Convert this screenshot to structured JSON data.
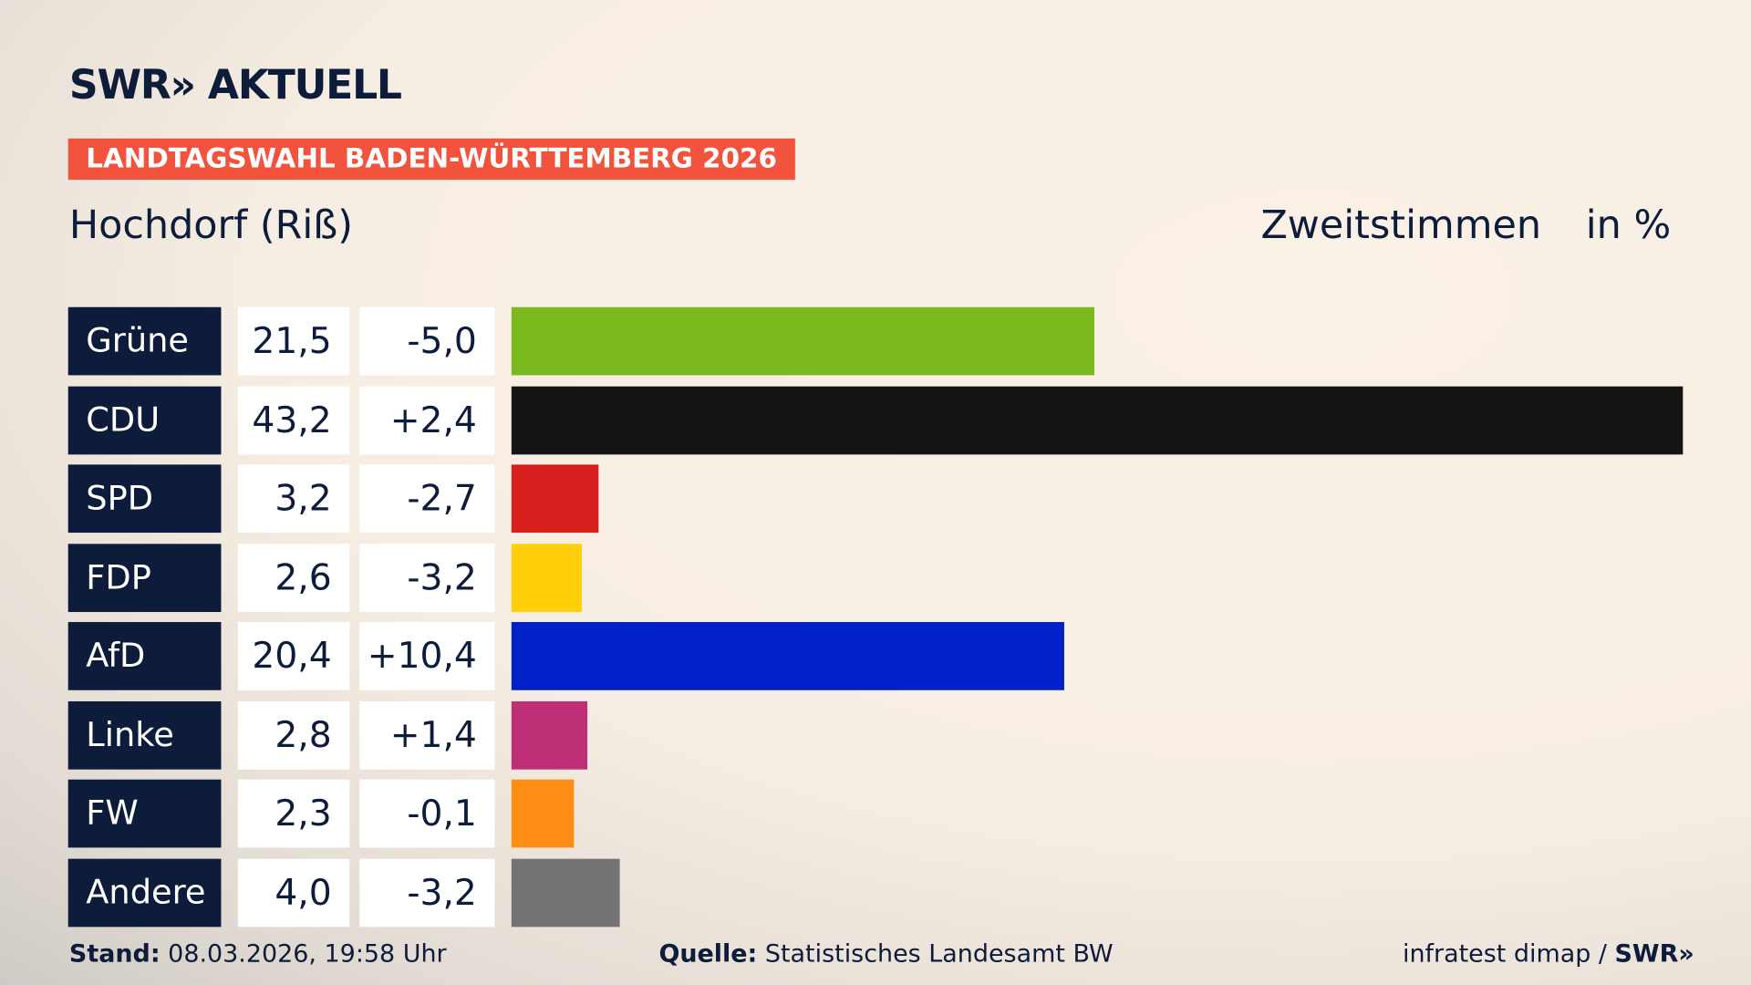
{
  "brand": "SWR» AKTUELL",
  "banner": "LANDTAGSWAHL BADEN-WÜRTTEMBERG 2026",
  "place": "Hochdorf (Riß)",
  "metric": "Zweitstimmen",
  "unit": "in %",
  "chart_data": {
    "type": "bar",
    "orientation": "horizontal",
    "categories": [
      "Grüne",
      "CDU",
      "SPD",
      "FDP",
      "AfD",
      "Linke",
      "FW",
      "Andere"
    ],
    "values": [
      21.5,
      43.2,
      3.2,
      2.6,
      20.4,
      2.8,
      2.3,
      4.0
    ],
    "value_labels": [
      "21,5",
      "43,2",
      "3,2",
      "2,6",
      "20,4",
      "2,8",
      "2,3",
      "4,0"
    ],
    "change_labels": [
      "-5,0",
      "+2,4",
      "-2,7",
      "-3,2",
      "+10,4",
      "+1,4",
      "-0,1",
      "-3,2"
    ],
    "colors": [
      "#7aba1e",
      "#141414",
      "#d71f1d",
      "#ffd00a",
      "#0020c8",
      "#be2f78",
      "#ff8c14",
      "#737373"
    ]
  },
  "footer": {
    "stand_label": "Stand:",
    "stand_value": " 08.03.2026, 19:58 Uhr",
    "source_label": "Quelle:",
    "source_value": " Statistisches Landesamt BW",
    "credit": "infratest dimap / ",
    "credit_brand": "SWR»"
  }
}
